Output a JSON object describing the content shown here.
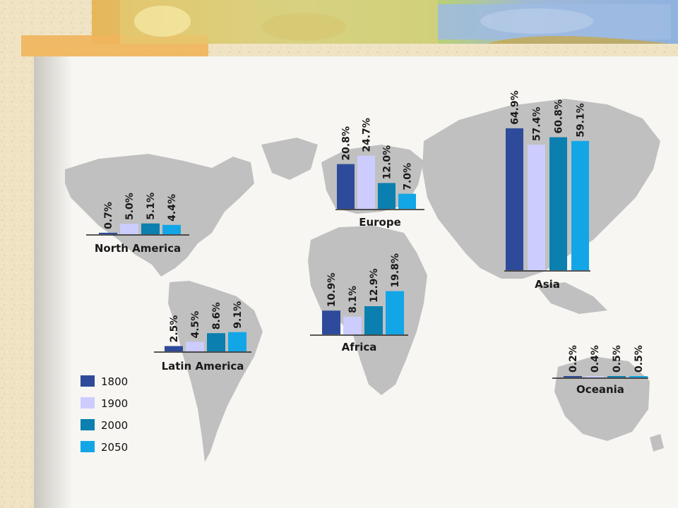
{
  "slide": {
    "colors": {
      "paper": "#efe3c4",
      "panel": "#f7f6f3",
      "map": "#c0c0c0",
      "text": "#1a1a1a"
    }
  },
  "chart_data": {
    "type": "bar",
    "series": [
      {
        "name": "1800",
        "color": "#2e4a9a"
      },
      {
        "name": "1900",
        "color": "#ccccff"
      },
      {
        "name": "2000",
        "color": "#0a7fb0"
      },
      {
        "name": "2050",
        "color": "#12a6e6"
      }
    ],
    "regions": [
      {
        "name": "North America",
        "values": [
          0.7,
          5.0,
          5.1,
          4.4
        ],
        "labels": [
          "0.7%",
          "5.0%",
          "5.1%",
          "4.4%"
        ]
      },
      {
        "name": "Latin America",
        "values": [
          2.5,
          4.5,
          8.6,
          9.1
        ],
        "labels": [
          "2.5%",
          "4.5%",
          "8.6%",
          "9.1%"
        ]
      },
      {
        "name": "Europe",
        "values": [
          20.8,
          24.7,
          12.0,
          7.0
        ],
        "labels": [
          "20.8%",
          "24.7%",
          "12.0%",
          "7.0%"
        ]
      },
      {
        "name": "Africa",
        "values": [
          10.9,
          8.1,
          12.9,
          19.8
        ],
        "labels": [
          "10.9%",
          "8.1%",
          "12.9%",
          "19.8%"
        ]
      },
      {
        "name": "Asia",
        "values": [
          64.9,
          57.4,
          60.8,
          59.1
        ],
        "labels": [
          "64.9%",
          "57.4%",
          "60.8%",
          "59.1%"
        ]
      },
      {
        "name": "Oceania",
        "values": [
          0.2,
          0.4,
          0.5,
          0.5
        ],
        "labels": [
          "0.2%",
          "0.4%",
          "0.5%",
          "0.5%"
        ]
      }
    ],
    "legend": [
      "1800",
      "1900",
      "2000",
      "2050"
    ]
  }
}
